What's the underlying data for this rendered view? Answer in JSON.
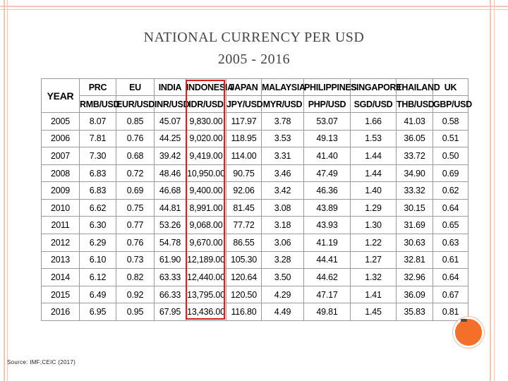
{
  "title_line1": "NATIONAL CURRENCY PER USD",
  "title_line2": "2005 - 2016",
  "source": "Source: IMF;CEIC (2017)",
  "colors": {
    "accent_orange": "#f36f2a",
    "frame": "#f3c8b8",
    "highlight": "#d81e1e"
  },
  "table": {
    "year_header": "YEAR",
    "countries": [
      "PRC",
      "EU",
      "INDIA",
      "INDONESIA",
      "JAPAN",
      "MALAYSIA",
      "PHILIPPINES",
      "SINGAPORE",
      "THAILAND",
      "UK"
    ],
    "units": [
      "RMB/USD",
      "EUR/USD",
      "INR/USD",
      "IDR/USD",
      "JPY/USD",
      "MYR/USD",
      "PHP/USD",
      "SGD/USD",
      "THB/USD",
      "GBP/USD"
    ],
    "rows": [
      {
        "year": "2005",
        "values": [
          "8.07",
          "0.85",
          "45.07",
          "9,830.00",
          "117.97",
          "3.78",
          "53.07",
          "1.66",
          "41.03",
          "0.58"
        ]
      },
      {
        "year": "2006",
        "values": [
          "7.81",
          "0.76",
          "44.25",
          "9,020.00",
          "118.95",
          "3.53",
          "49.13",
          "1.53",
          "36.05",
          "0.51"
        ]
      },
      {
        "year": "2007",
        "values": [
          "7.30",
          "0.68",
          "39.42",
          "9,419.00",
          "114.00",
          "3.31",
          "41.40",
          "1.44",
          "33.72",
          "0.50"
        ]
      },
      {
        "year": "2008",
        "values": [
          "6.83",
          "0.72",
          "48.46",
          "10,950.00",
          "90.75",
          "3.46",
          "47.49",
          "1.44",
          "34.90",
          "0.69"
        ]
      },
      {
        "year": "2009",
        "values": [
          "6.83",
          "0.69",
          "46.68",
          "9,400.00",
          "92.06",
          "3.42",
          "46.36",
          "1.40",
          "33.32",
          "0.62"
        ]
      },
      {
        "year": "2010",
        "values": [
          "6.62",
          "0.75",
          "44.81",
          "8,991.00",
          "81.45",
          "3.08",
          "43.89",
          "1.29",
          "30.15",
          "0.64"
        ]
      },
      {
        "year": "2011",
        "values": [
          "6.30",
          "0.77",
          "53.26",
          "9,068.00",
          "77.72",
          "3.18",
          "43.93",
          "1.30",
          "31.69",
          "0.65"
        ]
      },
      {
        "year": "2012",
        "values": [
          "6.29",
          "0.76",
          "54.78",
          "9,670.00",
          "86.55",
          "3.06",
          "41.19",
          "1.22",
          "30.63",
          "0.63"
        ]
      },
      {
        "year": "2013",
        "values": [
          "6.10",
          "0.73",
          "61.90",
          "12,189.00",
          "105.30",
          "3.28",
          "44.41",
          "1.27",
          "32.81",
          "0.61"
        ]
      },
      {
        "year": "2014",
        "values": [
          "6.12",
          "0.82",
          "63.33",
          "12,440.00",
          "120.64",
          "3.50",
          "44.62",
          "1.32",
          "32.96",
          "0.64"
        ]
      },
      {
        "year": "2015",
        "values": [
          "6.49",
          "0.92",
          "66.33",
          "13,795.00",
          "120.50",
          "4.29",
          "47.17",
          "1.41",
          "36.09",
          "0.67"
        ]
      },
      {
        "year": "2016",
        "values": [
          "6.95",
          "0.95",
          "67.95",
          "13,436.00",
          "116.80",
          "4.49",
          "49.81",
          "1.45",
          "35.83",
          "0.81"
        ]
      }
    ]
  }
}
